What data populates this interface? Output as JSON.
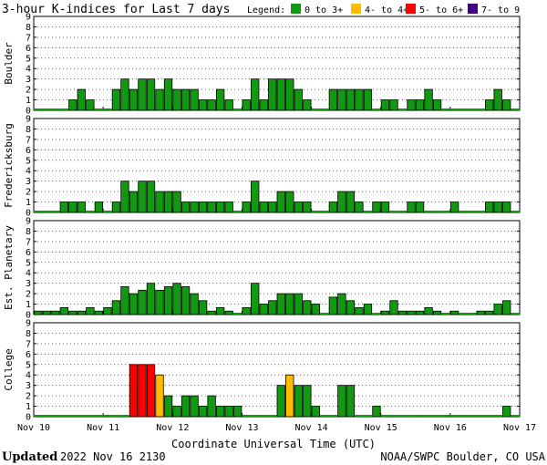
{
  "title": "3-hour K-indices for Last 7 days",
  "legend": {
    "label": "Legend:",
    "items": [
      {
        "text": "0 to 3+",
        "color": "#119911"
      },
      {
        "text": "4- to 4+",
        "color": "#ffbb00"
      },
      {
        "text": "5- to 6+",
        "color": "#ff0000"
      },
      {
        "text": "7- to 9",
        "color": "#440088"
      }
    ]
  },
  "footer": {
    "updated_label": "Updated",
    "updated_value": "2022 Nov 16 2130",
    "credit": "NOAA/SWPC Boulder, CO USA"
  },
  "chart_data": {
    "type": "bar",
    "xlabel": "Coordinate Universal Time (UTC)",
    "x_ticks": [
      "Nov 10",
      "Nov 11",
      "Nov 12",
      "Nov 13",
      "Nov 14",
      "Nov 15",
      "Nov 16",
      "Nov 17"
    ],
    "y_ticks": [
      "0",
      "1",
      "2",
      "3",
      "4",
      "5",
      "6",
      "7",
      "8",
      "9"
    ],
    "ylim": [
      0,
      9
    ],
    "grid": "dotted horizontal",
    "color_scale": [
      {
        "min": 0,
        "max": 3.99,
        "color": "#119911"
      },
      {
        "min": 4,
        "max": 4.99,
        "color": "#ffbb00"
      },
      {
        "min": 5,
        "max": 6.99,
        "color": "#ff0000"
      },
      {
        "min": 7,
        "max": 9,
        "color": "#440088"
      }
    ],
    "series": [
      {
        "name": "Boulder",
        "values": [
          0,
          0,
          0,
          0,
          1,
          2,
          1,
          0,
          0,
          2,
          3,
          2,
          3,
          3,
          2,
          3,
          2,
          2,
          2,
          1,
          1,
          2,
          1,
          0,
          1,
          3,
          1,
          3,
          3,
          3,
          2,
          1,
          0,
          0,
          2,
          2,
          2,
          2,
          2,
          0,
          1,
          1,
          0,
          1,
          1,
          2,
          1,
          0,
          0,
          0,
          0,
          0,
          1,
          2,
          1,
          0
        ]
      },
      {
        "name": "Fredericksburg",
        "values": [
          0,
          0,
          0,
          1,
          1,
          1,
          0,
          1,
          0,
          1,
          3,
          2,
          3,
          3,
          2,
          2,
          2,
          1,
          1,
          1,
          1,
          1,
          1,
          0,
          1,
          3,
          1,
          1,
          2,
          2,
          1,
          1,
          0,
          0,
          1,
          2,
          2,
          1,
          0,
          1,
          1,
          0,
          0,
          1,
          1,
          0,
          0,
          0,
          1,
          0,
          0,
          0,
          1,
          1,
          1,
          0
        ]
      },
      {
        "name": "Est. Planetary",
        "values": [
          0.33,
          0.33,
          0.33,
          0.67,
          0.33,
          0.33,
          0.67,
          0.33,
          0.67,
          1.33,
          2.67,
          2.0,
          2.33,
          3.0,
          2.33,
          2.67,
          3.0,
          2.67,
          2.0,
          1.33,
          0.33,
          0.67,
          0.33,
          0.0,
          0.67,
          3.0,
          1.0,
          1.33,
          2.0,
          2.0,
          2.0,
          1.33,
          1.0,
          0.0,
          1.67,
          2.0,
          1.33,
          0.67,
          1.0,
          0.0,
          0.33,
          1.33,
          0.33,
          0.33,
          0.33,
          0.67,
          0.33,
          0.0,
          0.33,
          0.0,
          0.0,
          0.33,
          0.33,
          1.0,
          1.33,
          0.0
        ]
      },
      {
        "name": "College",
        "values": [
          0,
          0,
          0,
          0,
          0,
          0,
          0,
          0,
          0,
          0,
          0,
          5,
          5,
          5,
          4,
          2,
          1,
          2,
          2,
          1,
          2,
          1,
          1,
          1,
          0,
          0,
          0,
          0,
          3,
          4,
          3,
          3,
          1,
          0,
          0,
          3,
          3,
          0,
          0,
          1,
          0,
          0,
          0,
          0,
          0,
          0,
          0,
          0,
          0,
          0,
          0,
          0,
          0,
          0,
          1,
          0
        ]
      }
    ]
  }
}
